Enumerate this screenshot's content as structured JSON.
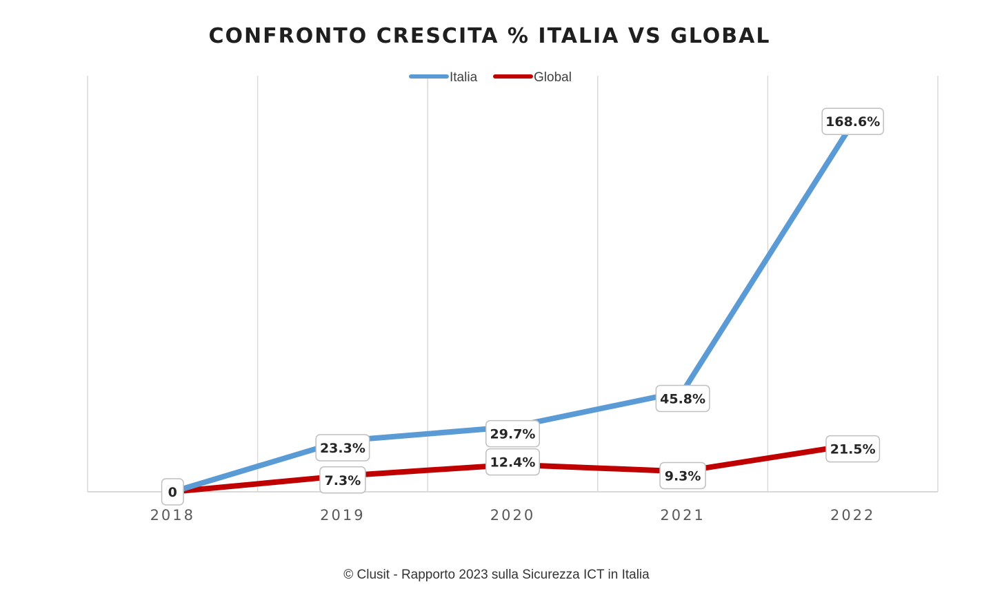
{
  "colors": {
    "italia": "#5b9bd5",
    "global": "#c00000",
    "grid": "#d9d9d9"
  },
  "chart_data": {
    "type": "line",
    "title": "CONFRONTO  CRESCITA  %  ITALIA  VS  GLOBAL",
    "categories": [
      "2018",
      "2019",
      "2020",
      "2021",
      "2022"
    ],
    "series": [
      {
        "name": "Italia",
        "values": [
          0,
          23.3,
          29.7,
          45.8,
          168.6
        ],
        "labels": [
          "0",
          "23.3%",
          "29.7%",
          "45.8%",
          "168.6%"
        ]
      },
      {
        "name": "Global",
        "values": [
          0,
          7.3,
          12.4,
          9.3,
          21.5
        ],
        "labels": [
          "",
          "7.3%",
          "12.4%",
          "9.3%",
          "21.5%"
        ]
      }
    ],
    "ylim": [
      0,
      180
    ],
    "grid": "vertical",
    "legend": "top-center",
    "y_axis_labels": false
  },
  "footer": "© Clusit - Rapporto 2023 sulla Sicurezza ICT in Italia"
}
